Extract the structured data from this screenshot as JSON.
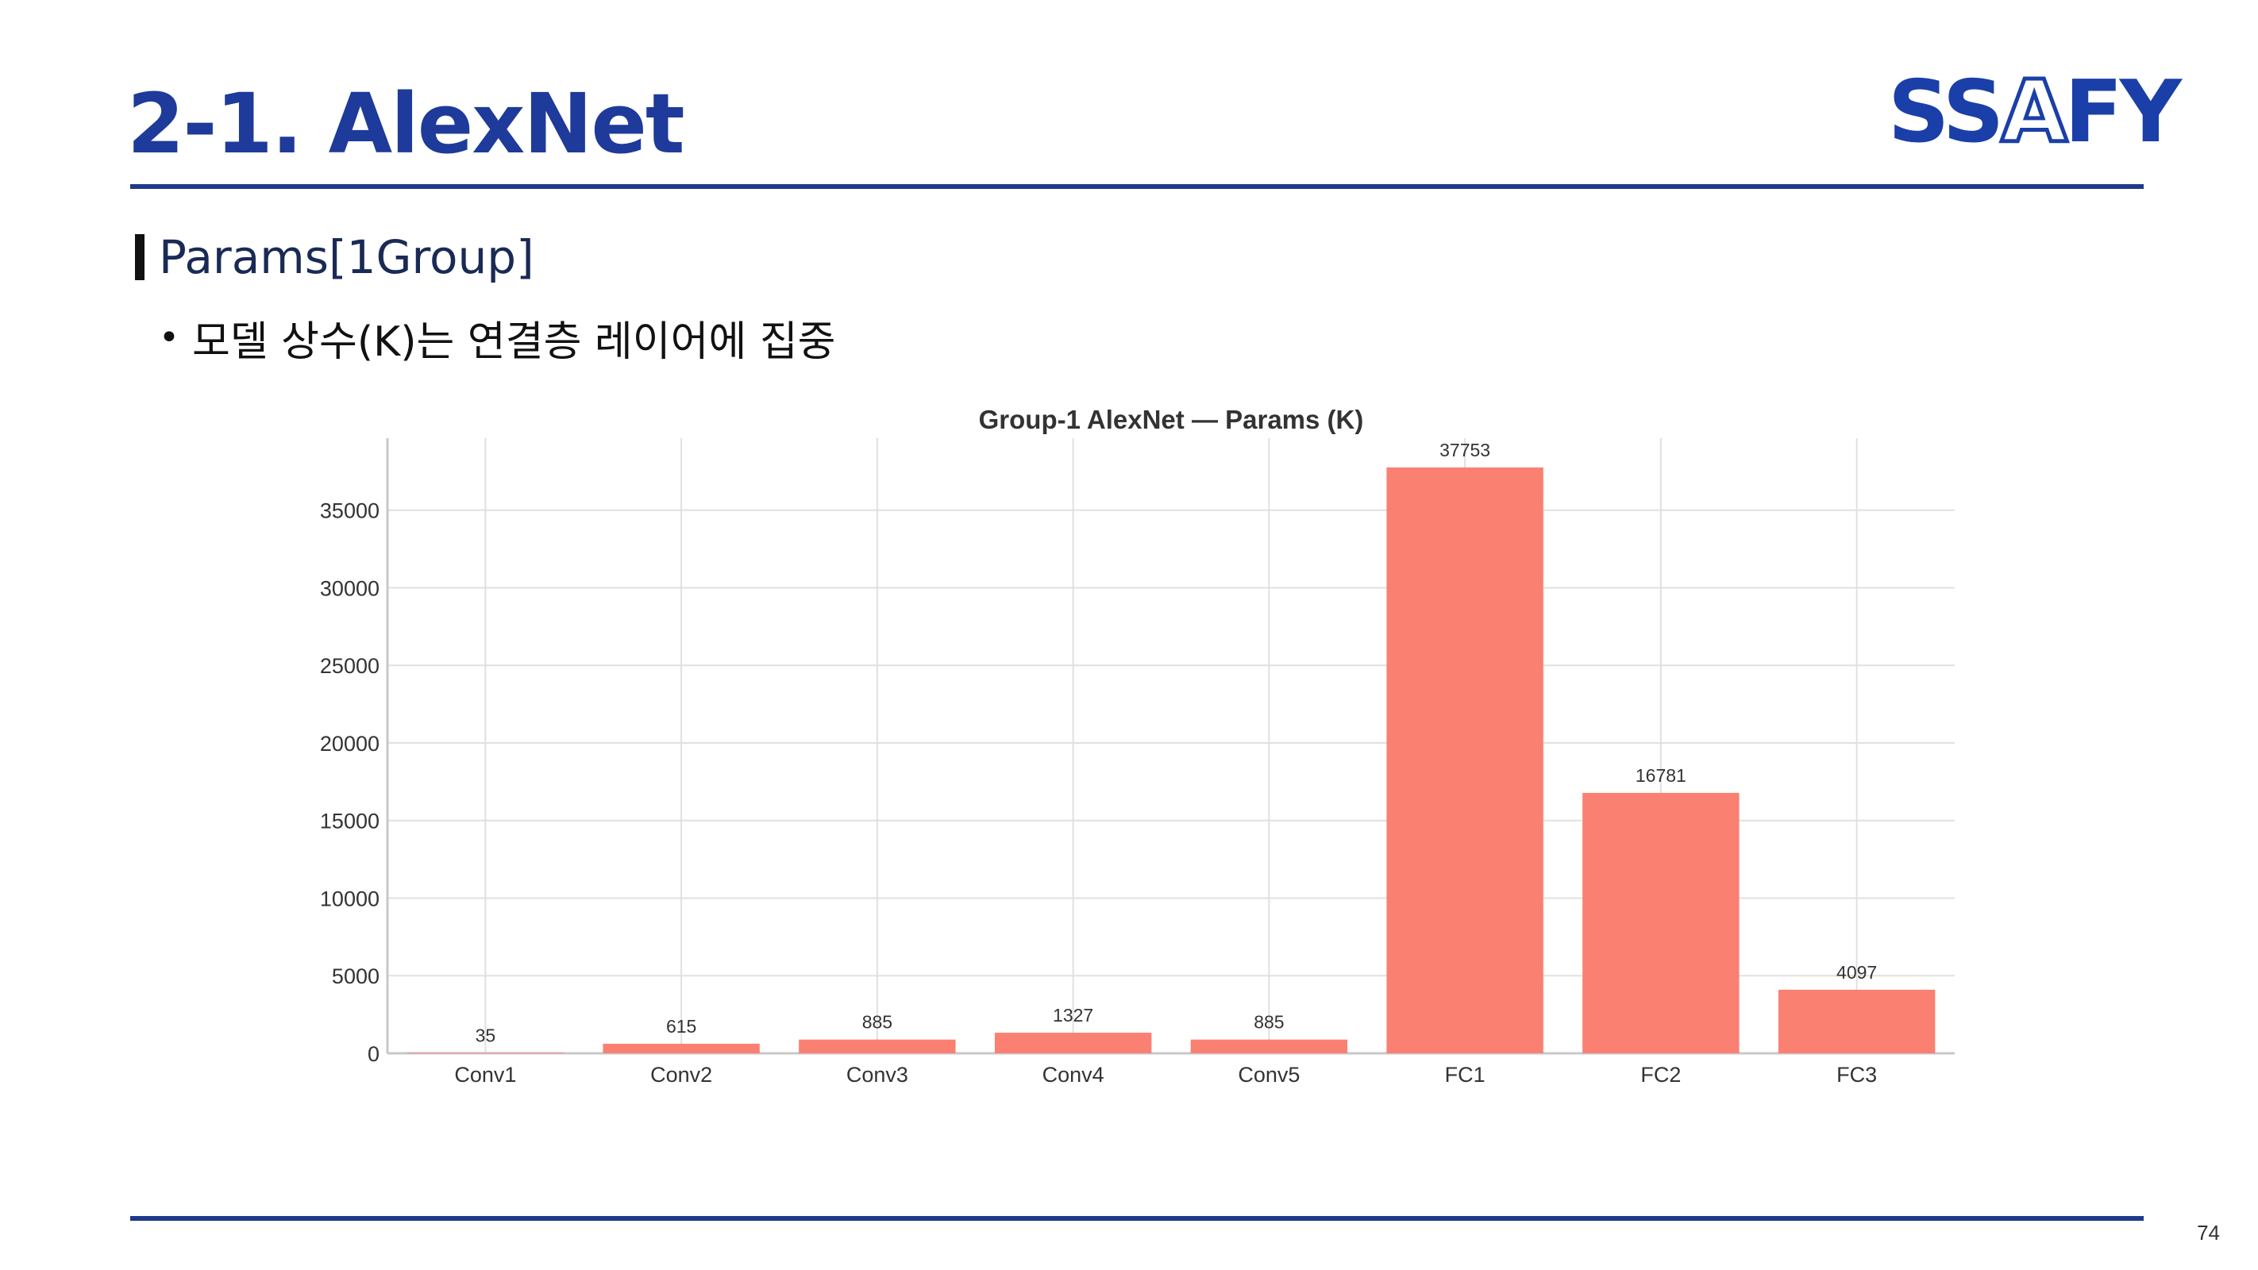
{
  "slide": {
    "title": "2-1. AlexNet",
    "logo": {
      "prefix": "SS",
      "accent": "A",
      "suffix": "FY"
    },
    "section_title": "Params[1Group]",
    "bullet": "모델 상수(K)는 연결층 레이어에 집중",
    "bullet_marker": "•",
    "page_number": "74"
  },
  "colors": {
    "title": "#1e3a9a",
    "rule": "#1e3a8a",
    "bar": "#fa8072",
    "grid": "#e0e0e0"
  },
  "chart_data": {
    "type": "bar",
    "title": "Group-1 AlexNet — Params (K)",
    "xlabel": "",
    "ylabel": "",
    "categories": [
      "Conv1",
      "Conv2",
      "Conv3",
      "Conv4",
      "Conv5",
      "FC1",
      "FC2",
      "FC3"
    ],
    "values": [
      35,
      615,
      885,
      1327,
      885,
      37753,
      16781,
      4097
    ],
    "data_labels": [
      "35",
      "615",
      "885",
      "1327",
      "885",
      "37753",
      "16781",
      "4097"
    ],
    "yticks": [
      0,
      5000,
      10000,
      15000,
      20000,
      25000,
      30000,
      35000
    ],
    "ytick_labels": [
      "0",
      "5000",
      "10000",
      "15000",
      "20000",
      "25000",
      "30000",
      "35000"
    ],
    "ylim": [
      0,
      39640
    ],
    "grid": true,
    "legend": "none"
  }
}
